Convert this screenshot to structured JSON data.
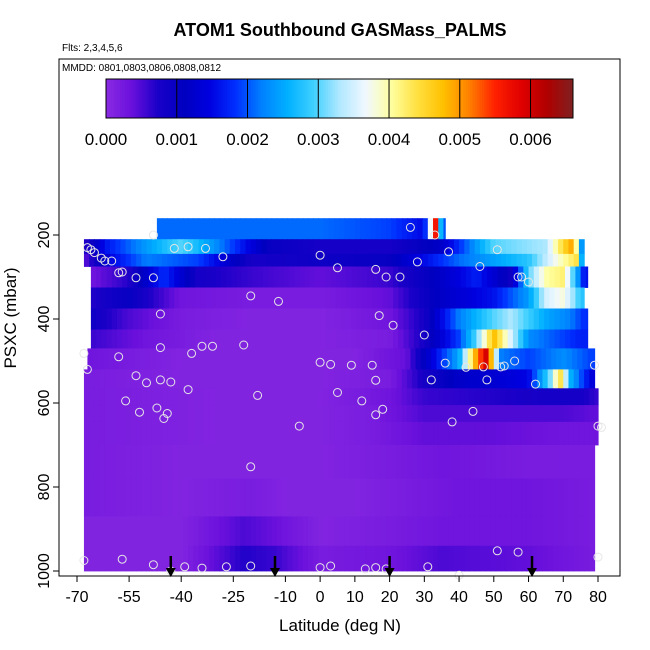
{
  "chart_data": {
    "type": "heatmap",
    "title": "ATOM1 Southbound GASMass_PALMS",
    "flights_note": "Flts: 2,3,4,5,6",
    "dates_note": "MMDD: 0801,0803,0806,0808,0812",
    "xlabel": "Latitude (deg N)",
    "ylabel": "PSXC (mbar)",
    "xlim": [
      -70,
      85
    ],
    "ylim": [
      1000,
      0
    ],
    "y_reversed": true,
    "x_ticks": [
      "-70",
      "-55",
      "-40",
      "-25",
      "-10",
      "0",
      "10",
      "20",
      "30",
      "40",
      "50",
      "60",
      "70",
      "80"
    ],
    "x_tick_values": [
      -70,
      -55,
      -40,
      -25,
      -10,
      0,
      10,
      20,
      30,
      40,
      50,
      60,
      70,
      80
    ],
    "y_ticks": [
      "200",
      "400",
      "600",
      "800",
      "1000"
    ],
    "y_tick_values": [
      200,
      400,
      600,
      800,
      1000
    ],
    "colorbar": {
      "range": [
        0,
        0.0066
      ],
      "tick_labels": [
        "0.000",
        "0.001",
        "0.002",
        "0.003",
        "0.004",
        "0.005",
        "0.006"
      ],
      "tick_values": [
        0,
        0.001,
        0.002,
        0.003,
        0.004,
        0.005,
        0.006
      ],
      "colors": [
        "#8a2be2",
        "#6a10dc",
        "#1a00c8",
        "#0000c0",
        "#0000e0",
        "#0030ff",
        "#0080ff",
        "#00b0ff",
        "#40d0ff",
        "#b0e8ff",
        "#f0f8ff",
        "#ffffa0",
        "#ffe040",
        "#ffc000",
        "#ff8000",
        "#ff2000",
        "#e00000",
        "#b00000",
        "#802020"
      ]
    },
    "pressure_bins": [
      {
        "p_top": 160,
        "p_bot": 210,
        "x_start": -47,
        "x_end": 36,
        "knots": [
          [
            -47,
            0.0021
          ],
          [
            -35,
            0.0021
          ],
          [
            -20,
            0.0021
          ],
          [
            0,
            0.0021
          ],
          [
            20,
            0.0019
          ],
          [
            30,
            0.0015
          ],
          [
            32,
            0.004
          ],
          [
            33,
            0.006
          ],
          [
            34,
            0.0045
          ],
          [
            35,
            0.002
          ]
        ]
      },
      {
        "p_top": 210,
        "p_bot": 245,
        "x_start": -68,
        "x_end": 76,
        "knots": [
          [
            -68,
            0.0006
          ],
          [
            -62,
            0.0016
          ],
          [
            -50,
            0.0024
          ],
          [
            -40,
            0.003
          ],
          [
            -30,
            0.0023
          ],
          [
            -15,
            0.001
          ],
          [
            0,
            0.0008
          ],
          [
            20,
            0.0008
          ],
          [
            35,
            0.0012
          ],
          [
            50,
            0.003
          ],
          [
            65,
            0.0033
          ],
          [
            70,
            0.0045
          ],
          [
            73,
            0.005
          ],
          [
            75,
            0.0024
          ]
        ]
      },
      {
        "p_top": 245,
        "p_bot": 275,
        "x_start": -68,
        "x_end": 76,
        "knots": [
          [
            -68,
            0.0004
          ],
          [
            -60,
            0.0015
          ],
          [
            -50,
            0.0022
          ],
          [
            -35,
            0.0019
          ],
          [
            -20,
            0.0008
          ],
          [
            0,
            0.0009
          ],
          [
            20,
            0.001
          ],
          [
            40,
            0.0021
          ],
          [
            60,
            0.0028
          ],
          [
            70,
            0.004
          ],
          [
            74,
            0.0044
          ],
          [
            76,
            0.0015
          ]
        ]
      },
      {
        "p_top": 275,
        "p_bot": 325,
        "x_start": -66,
        "x_end": 77,
        "knots": [
          [
            -66,
            0.0003
          ],
          [
            -55,
            0.0007
          ],
          [
            -45,
            0.0018
          ],
          [
            -35,
            0.0008
          ],
          [
            -20,
            0.0006
          ],
          [
            0,
            0.0004
          ],
          [
            20,
            0.0006
          ],
          [
            35,
            0.0012
          ],
          [
            45,
            0.0017
          ],
          [
            55,
            0.0009
          ],
          [
            60,
            0.003
          ],
          [
            65,
            0.004
          ],
          [
            70,
            0.0042
          ],
          [
            76,
            0.0016
          ]
        ]
      },
      {
        "p_top": 325,
        "p_bot": 375,
        "x_start": -66,
        "x_end": 76,
        "knots": [
          [
            -66,
            0.0007
          ],
          [
            -55,
            0.001
          ],
          [
            -40,
            0.0003
          ],
          [
            -20,
            0.0002
          ],
          [
            0,
            0.0002
          ],
          [
            20,
            0.0004
          ],
          [
            35,
            0.0012
          ],
          [
            50,
            0.0016
          ],
          [
            60,
            0.0024
          ],
          [
            65,
            0.0035
          ],
          [
            70,
            0.0038
          ],
          [
            75,
            0.0028
          ]
        ]
      },
      {
        "p_top": 375,
        "p_bot": 425,
        "x_start": -66,
        "x_end": 77,
        "knots": [
          [
            -66,
            0.0009
          ],
          [
            -55,
            0.0005
          ],
          [
            -40,
            0.0002
          ],
          [
            -20,
            0.0001
          ],
          [
            0,
            0.0001
          ],
          [
            20,
            0.0003
          ],
          [
            30,
            0.0008
          ],
          [
            40,
            0.0022
          ],
          [
            50,
            0.003
          ],
          [
            55,
            0.0033
          ],
          [
            65,
            0.0025
          ],
          [
            72,
            0.0022
          ],
          [
            76,
            0.0018
          ]
        ]
      },
      {
        "p_top": 425,
        "p_bot": 470,
        "x_start": -66,
        "x_end": 77,
        "knots": [
          [
            -66,
            0.0006
          ],
          [
            -50,
            0.0003
          ],
          [
            -30,
            0.0001
          ],
          [
            0,
            0.0001
          ],
          [
            20,
            0.0002
          ],
          [
            30,
            0.0008
          ],
          [
            40,
            0.0019
          ],
          [
            45,
            0.003
          ],
          [
            50,
            0.0048
          ],
          [
            53,
            0.004
          ],
          [
            60,
            0.0023
          ],
          [
            75,
            0.0017
          ]
        ]
      },
      {
        "p_top": 470,
        "p_bot": 520,
        "x_start": -67,
        "x_end": 79,
        "knots": [
          [
            -67,
            0.0003
          ],
          [
            -40,
            0.0001
          ],
          [
            -10,
            0.0001
          ],
          [
            10,
            0.0001
          ],
          [
            25,
            0.0004
          ],
          [
            35,
            0.0018
          ],
          [
            40,
            0.0025
          ],
          [
            45,
            0.005
          ],
          [
            48,
            0.006
          ],
          [
            52,
            0.0022
          ],
          [
            60,
            0.0019
          ],
          [
            70,
            0.0023
          ],
          [
            78,
            0.0019
          ]
        ]
      },
      {
        "p_top": 520,
        "p_bot": 565,
        "x_start": -68,
        "x_end": 79,
        "knots": [
          [
            -68,
            0.0002
          ],
          [
            -40,
            0.0001
          ],
          [
            0,
            0.0001
          ],
          [
            20,
            0.0002
          ],
          [
            30,
            0.0008
          ],
          [
            40,
            0.0012
          ],
          [
            50,
            0.0013
          ],
          [
            60,
            0.0015
          ],
          [
            66,
            0.003
          ],
          [
            69,
            0.0045
          ],
          [
            72,
            0.0026
          ],
          [
            78,
            0.0014
          ]
        ]
      },
      {
        "p_top": 565,
        "p_bot": 605,
        "x_start": -68,
        "x_end": 80,
        "knots": [
          [
            -68,
            0.0002
          ],
          [
            -30,
            0.0001
          ],
          [
            0,
            0.0001
          ],
          [
            20,
            0.0003
          ],
          [
            30,
            0.0006
          ],
          [
            50,
            0.0007
          ],
          [
            65,
            0.0008
          ],
          [
            75,
            0.0008
          ],
          [
            80,
            0.0006
          ]
        ]
      },
      {
        "p_top": 605,
        "p_bot": 645,
        "x_start": -68,
        "x_end": 80,
        "knots": [
          [
            -68,
            0.0002
          ],
          [
            -30,
            0.0001
          ],
          [
            0,
            0.0001
          ],
          [
            15,
            0.0002
          ],
          [
            30,
            0.0005
          ],
          [
            50,
            0.0005
          ],
          [
            70,
            0.0005
          ],
          [
            80,
            0.0004
          ]
        ]
      },
      {
        "p_top": 645,
        "p_bot": 700,
        "x_start": -68,
        "x_end": 80,
        "knots": [
          [
            -68,
            0.0002
          ],
          [
            -30,
            0.0001
          ],
          [
            0,
            0.0001
          ],
          [
            15,
            0.0002
          ],
          [
            30,
            0.0004
          ],
          [
            50,
            0.0004
          ],
          [
            70,
            0.0003
          ],
          [
            80,
            0.0003
          ]
        ]
      },
      {
        "p_top": 700,
        "p_bot": 780,
        "x_start": -68,
        "x_end": 79,
        "knots": [
          [
            -68,
            0.0002
          ],
          [
            -40,
            0.0001
          ],
          [
            -20,
            0.0001
          ],
          [
            0,
            0.0001
          ],
          [
            20,
            0.0002
          ],
          [
            35,
            0.0003
          ],
          [
            60,
            0.0002
          ],
          [
            79,
            0.0002
          ]
        ]
      },
      {
        "p_top": 780,
        "p_bot": 870,
        "x_start": -68,
        "x_end": 79,
        "knots": [
          [
            -68,
            0.0002
          ],
          [
            -40,
            0.0001
          ],
          [
            -20,
            0.0002
          ],
          [
            -10,
            0.0001
          ],
          [
            10,
            0.0001
          ],
          [
            25,
            0.0002
          ],
          [
            40,
            0.0003
          ],
          [
            60,
            0.0003
          ],
          [
            79,
            0.0002
          ]
        ]
      },
      {
        "p_top": 870,
        "p_bot": 940,
        "x_start": -68,
        "x_end": 79,
        "knots": [
          [
            -68,
            0.0001
          ],
          [
            -40,
            0.0001
          ],
          [
            -22,
            0.0005
          ],
          [
            -15,
            0.0004
          ],
          [
            0,
            0.0001
          ],
          [
            20,
            0.0002
          ],
          [
            35,
            0.0003
          ],
          [
            60,
            0.0003
          ],
          [
            79,
            0.0002
          ]
        ]
      },
      {
        "p_top": 940,
        "p_bot": 1000,
        "x_start": -68,
        "x_end": 79,
        "knots": [
          [
            -68,
            0.0001
          ],
          [
            -40,
            0.0001
          ],
          [
            -22,
            0.0007
          ],
          [
            -13,
            0.0006
          ],
          [
            0,
            0.0002
          ],
          [
            20,
            0.0003
          ],
          [
            35,
            0.0005
          ],
          [
            60,
            0.0004
          ],
          [
            79,
            0.0002
          ]
        ]
      }
    ],
    "sample_points": [
      [
        -67,
        230
      ],
      [
        -66,
        235
      ],
      [
        -65,
        242
      ],
      [
        -63,
        255
      ],
      [
        -62,
        262
      ],
      [
        -60,
        262
      ],
      [
        -58,
        290
      ],
      [
        -57,
        288
      ],
      [
        -53,
        302
      ],
      [
        -48,
        302
      ],
      [
        -48,
        200
      ],
      [
        -42,
        232
      ],
      [
        -38,
        228
      ],
      [
        -33,
        232
      ],
      [
        -28,
        252
      ],
      [
        -20,
        345
      ],
      [
        -12,
        358
      ],
      [
        0,
        248
      ],
      [
        5,
        278
      ],
      [
        -46,
        388
      ],
      [
        -68,
        482
      ],
      [
        -67,
        520
      ],
      [
        -58,
        490
      ],
      [
        -53,
        535
      ],
      [
        -50,
        552
      ],
      [
        -46,
        468
      ],
      [
        -46,
        545
      ],
      [
        -43,
        550
      ],
      [
        -37,
        482
      ],
      [
        -34,
        465
      ],
      [
        -31,
        465
      ],
      [
        -22,
        462
      ],
      [
        -38,
        568
      ],
      [
        -47,
        612
      ],
      [
        -45,
        637
      ],
      [
        -44,
        625
      ],
      [
        -52,
        622
      ],
      [
        -56,
        595
      ],
      [
        -18,
        582
      ],
      [
        -6,
        655
      ],
      [
        -20,
        752
      ],
      [
        16,
        282
      ],
      [
        19,
        300
      ],
      [
        23,
        300
      ],
      [
        28,
        264
      ],
      [
        17,
        392
      ],
      [
        21,
        415
      ],
      [
        30,
        438
      ],
      [
        26,
        182
      ],
      [
        33,
        200
      ],
      [
        37,
        240
      ],
      [
        51,
        235
      ],
      [
        46,
        275
      ],
      [
        57,
        300
      ],
      [
        58,
        300
      ],
      [
        60,
        312
      ],
      [
        36,
        505
      ],
      [
        42,
        515
      ],
      [
        47,
        514
      ],
      [
        52,
        514
      ],
      [
        53,
        512
      ],
      [
        48,
        545
      ],
      [
        56,
        500
      ],
      [
        62,
        555
      ],
      [
        44,
        620
      ],
      [
        38,
        645
      ],
      [
        0,
        503
      ],
      [
        3,
        508
      ],
      [
        9,
        510
      ],
      [
        15,
        510
      ],
      [
        16,
        546
      ],
      [
        5,
        575
      ],
      [
        12,
        595
      ],
      [
        16,
        628
      ],
      [
        18,
        615
      ],
      [
        32,
        545
      ],
      [
        79,
        510
      ],
      [
        80,
        655
      ],
      [
        81,
        658
      ],
      [
        -68,
        975
      ],
      [
        -57,
        972
      ],
      [
        -48,
        985
      ],
      [
        -43,
        1000
      ],
      [
        -39,
        990
      ],
      [
        -34,
        993
      ],
      [
        -27,
        990
      ],
      [
        -20,
        988
      ],
      [
        0,
        992
      ],
      [
        3,
        988
      ],
      [
        13,
        995
      ],
      [
        16,
        992
      ],
      [
        19,
        995
      ],
      [
        31,
        990
      ],
      [
        40,
        1010
      ],
      [
        51,
        952
      ],
      [
        57,
        955
      ],
      [
        80,
        967
      ]
    ],
    "arrows_at_x": [
      -43,
      -13,
      20,
      61
    ]
  }
}
